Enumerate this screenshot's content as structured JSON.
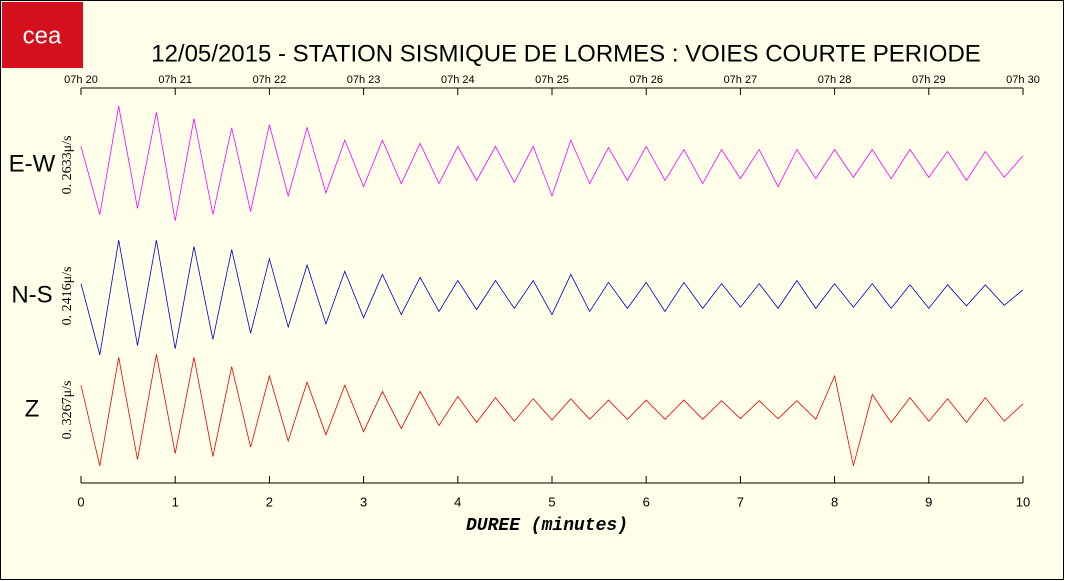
{
  "chart_data": {
    "type": "line",
    "logo_text": "cea",
    "title": "12/05/2015  -  STATION SISMIQUE DE LORMES : VOIES COURTE PERIODE",
    "xlabel": "DUREE (minutes)",
    "xlim": [
      0,
      10
    ],
    "xticks": [
      0,
      1,
      2,
      3,
      4,
      5,
      6,
      7,
      8,
      9,
      10
    ],
    "x2ticks": [
      {
        "value": 0,
        "label": "07h 20"
      },
      {
        "value": 1,
        "label": "07h 21"
      },
      {
        "value": 2,
        "label": "07h 22"
      },
      {
        "value": 3,
        "label": "07h 23"
      },
      {
        "value": 4,
        "label": "07h 24"
      },
      {
        "value": 5,
        "label": "07h 25"
      },
      {
        "value": 6,
        "label": "07h 26"
      },
      {
        "value": 7,
        "label": "07h 27"
      },
      {
        "value": 8,
        "label": "07h 28"
      },
      {
        "value": 9,
        "label": "07h 29"
      },
      {
        "value": 10,
        "label": "07h 30"
      }
    ],
    "ylim": [
      -1,
      1
    ],
    "x": [
      0,
      0.2,
      0.4,
      0.6,
      0.8,
      1,
      1.2,
      1.4,
      1.6,
      1.8,
      2,
      2.2,
      2.4,
      2.6,
      2.8,
      3,
      3.2,
      3.4,
      3.6,
      3.8,
      4,
      4.2,
      4.4,
      4.6,
      4.8,
      5,
      5.2,
      5.4,
      5.6,
      5.8,
      6,
      6.2,
      6.4,
      6.6,
      6.8,
      7,
      7.2,
      7.4,
      7.6,
      7.8,
      8,
      8.2,
      8.4,
      8.6,
      8.8,
      9,
      9.2,
      9.4,
      9.6,
      9.8,
      10
    ],
    "series": [
      {
        "name": "E-W",
        "scale_label": "0. 2633μ/s",
        "color": "#ff00ff",
        "values": [
          0.3,
          -0.8,
          0.95,
          -0.7,
          0.85,
          -0.9,
          0.75,
          -0.8,
          0.6,
          -0.75,
          0.65,
          -0.5,
          0.6,
          -0.45,
          0.4,
          -0.35,
          0.4,
          -0.3,
          0.35,
          -0.3,
          0.3,
          -0.25,
          0.3,
          -0.28,
          0.3,
          -0.5,
          0.4,
          -0.3,
          0.28,
          -0.25,
          0.3,
          -0.25,
          0.25,
          -0.3,
          0.25,
          -0.22,
          0.25,
          -0.35,
          0.25,
          -0.22,
          0.25,
          -0.2,
          0.25,
          -0.22,
          0.25,
          -0.2,
          0.22,
          -0.25,
          0.22,
          -0.2,
          0.15
        ]
      },
      {
        "name": "N-S",
        "scale_label": "0. 2416μ/s",
        "color": "#0000cc",
        "values": [
          0.2,
          -0.95,
          0.9,
          -0.8,
          0.9,
          -0.85,
          0.8,
          -0.7,
          0.75,
          -0.6,
          0.6,
          -0.5,
          0.5,
          -0.45,
          0.4,
          -0.35,
          0.35,
          -0.3,
          0.3,
          -0.25,
          0.25,
          -0.22,
          0.25,
          -0.2,
          0.25,
          -0.3,
          0.35,
          -0.25,
          0.22,
          -0.2,
          0.22,
          -0.25,
          0.22,
          -0.2,
          0.2,
          -0.18,
          0.2,
          -0.2,
          0.25,
          -0.2,
          0.2,
          -0.18,
          0.2,
          -0.2,
          0.18,
          -0.2,
          0.18,
          -0.16,
          0.18,
          -0.15,
          0.1
        ]
      },
      {
        "name": "Z",
        "scale_label": "0. 3267μ/s",
        "color": "#ee0000",
        "values": [
          0.4,
          -0.9,
          0.85,
          -0.8,
          0.9,
          -0.7,
          0.85,
          -0.75,
          0.7,
          -0.6,
          0.55,
          -0.5,
          0.45,
          -0.4,
          0.4,
          -0.35,
          0.3,
          -0.3,
          0.3,
          -0.25,
          0.22,
          -0.2,
          0.2,
          -0.18,
          0.18,
          -0.16,
          0.18,
          -0.15,
          0.16,
          -0.15,
          0.16,
          -0.15,
          0.16,
          -0.15,
          0.15,
          -0.14,
          0.15,
          -0.14,
          0.15,
          -0.15,
          0.55,
          -0.9,
          0.25,
          -0.2,
          0.2,
          -0.18,
          0.18,
          -0.2,
          0.2,
          -0.18,
          0.1
        ]
      }
    ]
  }
}
